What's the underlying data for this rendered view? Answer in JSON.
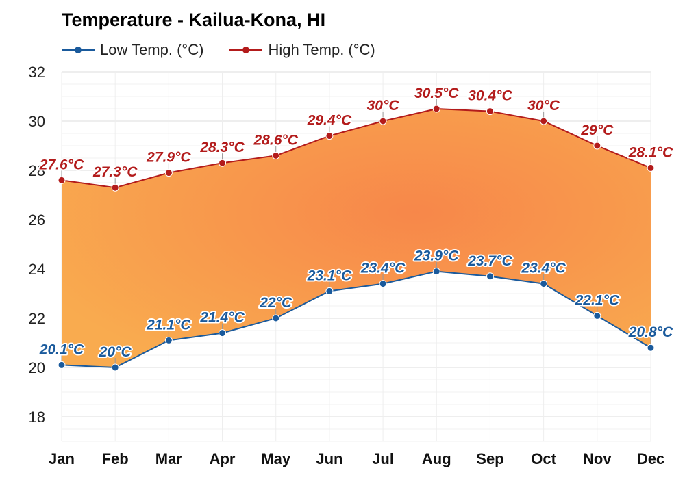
{
  "chart_data": {
    "type": "area",
    "title": "Temperature - Kailua-Kona, HI",
    "xlabel": "",
    "ylabel": "",
    "categories": [
      "Jan",
      "Feb",
      "Mar",
      "Apr",
      "May",
      "Jun",
      "Jul",
      "Aug",
      "Sep",
      "Oct",
      "Nov",
      "Dec"
    ],
    "series": [
      {
        "name": "Low Temp. (°C)",
        "color": "#1a5a9c",
        "values": [
          20.1,
          20,
          21.1,
          21.4,
          22,
          23.1,
          23.4,
          23.9,
          23.7,
          23.4,
          22.1,
          20.8
        ],
        "labels": [
          "20.1°C",
          "20°C",
          "21.1°C",
          "21.4°C",
          "22°C",
          "23.1°C",
          "23.4°C",
          "23.9°C",
          "23.7°C",
          "23.4°C",
          "22.1°C",
          "20.8°C"
        ]
      },
      {
        "name": "High Temp. (°C)",
        "color": "#b31b1b",
        "values": [
          27.6,
          27.3,
          27.9,
          28.3,
          28.6,
          29.4,
          30,
          30.5,
          30.4,
          30,
          29,
          28.1
        ],
        "labels": [
          "27.6°C",
          "27.3°C",
          "27.9°C",
          "28.3°C",
          "28.6°C",
          "29.4°C",
          "30°C",
          "30.5°C",
          "30.4°C",
          "30°C",
          "29°C",
          "28.1°C"
        ]
      }
    ],
    "y_ticks": [
      "18",
      "20",
      "22",
      "24",
      "26",
      "28",
      "30",
      "32"
    ],
    "ylim": [
      17,
      32
    ],
    "grid": true,
    "legend": "top-left",
    "fill_colors": [
      "#f9ab4f",
      "#f7874a"
    ]
  }
}
